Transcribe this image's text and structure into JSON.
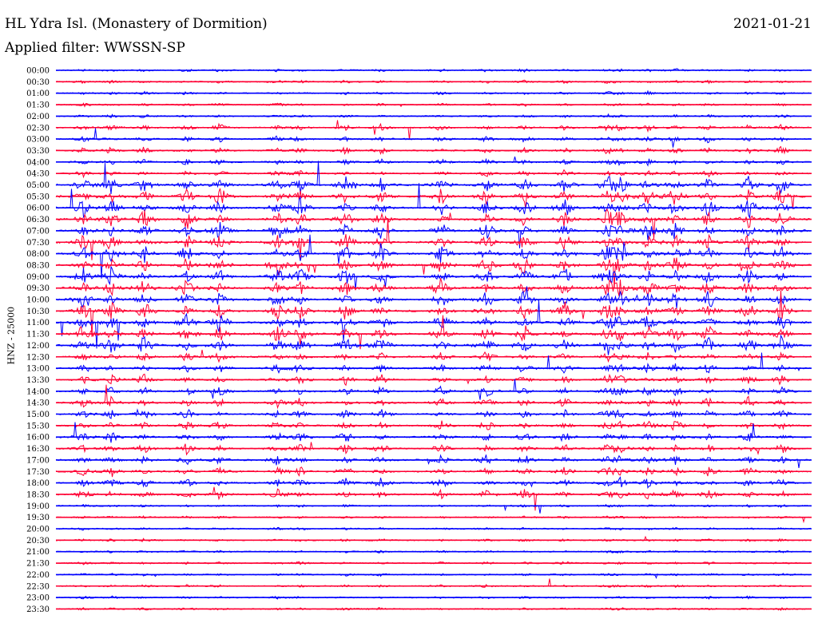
{
  "header": {
    "station": "HL Ydra Isl. (Monastery of Dormition)",
    "filter": "Applied filter: WWSSN-SP",
    "date": "2021-01-21"
  },
  "channel_label": "HNZ - 25000",
  "colors": {
    "blue": "#0000ff",
    "red": "#ff0033",
    "text": "#000000"
  },
  "chart_data": {
    "type": "line",
    "title": "HL Ydra Isl. (Monastery of Dormition)",
    "xlabel": "",
    "ylabel": "HNZ - 25000",
    "x_range_minutes": [
      0,
      30
    ],
    "y_tick_labels": [
      "00:00",
      "00:30",
      "01:00",
      "01:30",
      "02:00",
      "02:30",
      "03:00",
      "03:30",
      "04:00",
      "04:30",
      "05:00",
      "05:30",
      "06:00",
      "06:30",
      "07:00",
      "07:30",
      "08:00",
      "08:30",
      "09:00",
      "09:30",
      "10:00",
      "10:30",
      "11:00",
      "11:30",
      "12:00",
      "12:30",
      "13:00",
      "13:30",
      "14:00",
      "14:30",
      "15:00",
      "15:30",
      "16:00",
      "16:30",
      "17:00",
      "17:30",
      "18:00",
      "18:30",
      "19:00",
      "19:30",
      "20:00",
      "20:30",
      "21:00",
      "21:30",
      "22:00",
      "22:30",
      "23:00",
      "23:30"
    ],
    "trace_colors": [
      "#0000ff",
      "#ff0033"
    ],
    "grid": false,
    "legend": "none",
    "event_minutes": [
      1.1,
      2.2,
      3.5,
      5.2,
      6.5,
      8.8,
      9.7,
      11.5,
      12.9,
      15.3,
      17.1,
      18.6,
      20.2,
      21.9,
      22.4,
      23.5,
      24.6,
      25.9,
      27.5,
      28.8
    ]
  }
}
